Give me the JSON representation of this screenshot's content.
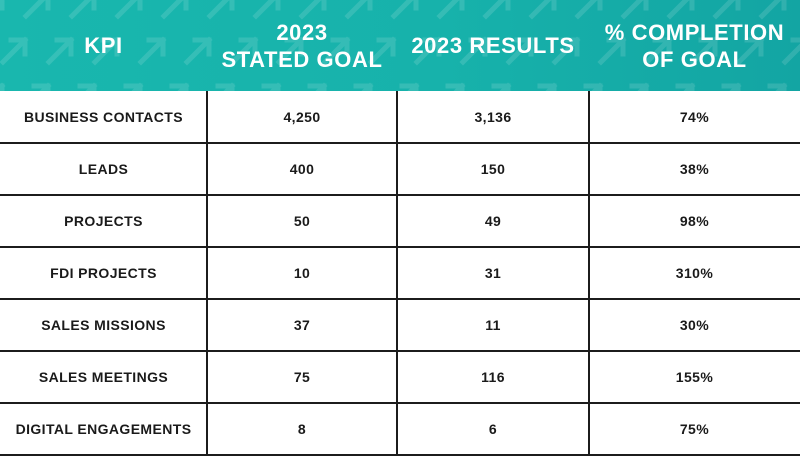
{
  "header": {
    "kpi": "KPI",
    "goal": "2023\nSTATED GOAL",
    "results": "2023 RESULTS",
    "completion": "% COMPLETION\nOF GOAL"
  },
  "colors": {
    "header_bg": "#17b2ab",
    "header_text": "#ffffff",
    "grid": "#1c1c1c",
    "body_text": "#1a1a1a"
  },
  "rows": [
    {
      "kpi": "BUSINESS CONTACTS",
      "goal": "4,250",
      "results": "3,136",
      "completion": "74%"
    },
    {
      "kpi": "LEADS",
      "goal": "400",
      "results": "150",
      "completion": "38%"
    },
    {
      "kpi": "PROJECTS",
      "goal": "50",
      "results": "49",
      "completion": "98%"
    },
    {
      "kpi": "FDI PROJECTS",
      "goal": "10",
      "results": "31",
      "completion": "310%"
    },
    {
      "kpi": "SALES MISSIONS",
      "goal": "37",
      "results": "11",
      "completion": "30%"
    },
    {
      "kpi": "SALES MEETINGS",
      "goal": "75",
      "results": "116",
      "completion": "155%"
    },
    {
      "kpi": "DIGITAL ENGAGEMENTS",
      "goal": "8",
      "results": "6",
      "completion": "75%"
    }
  ]
}
